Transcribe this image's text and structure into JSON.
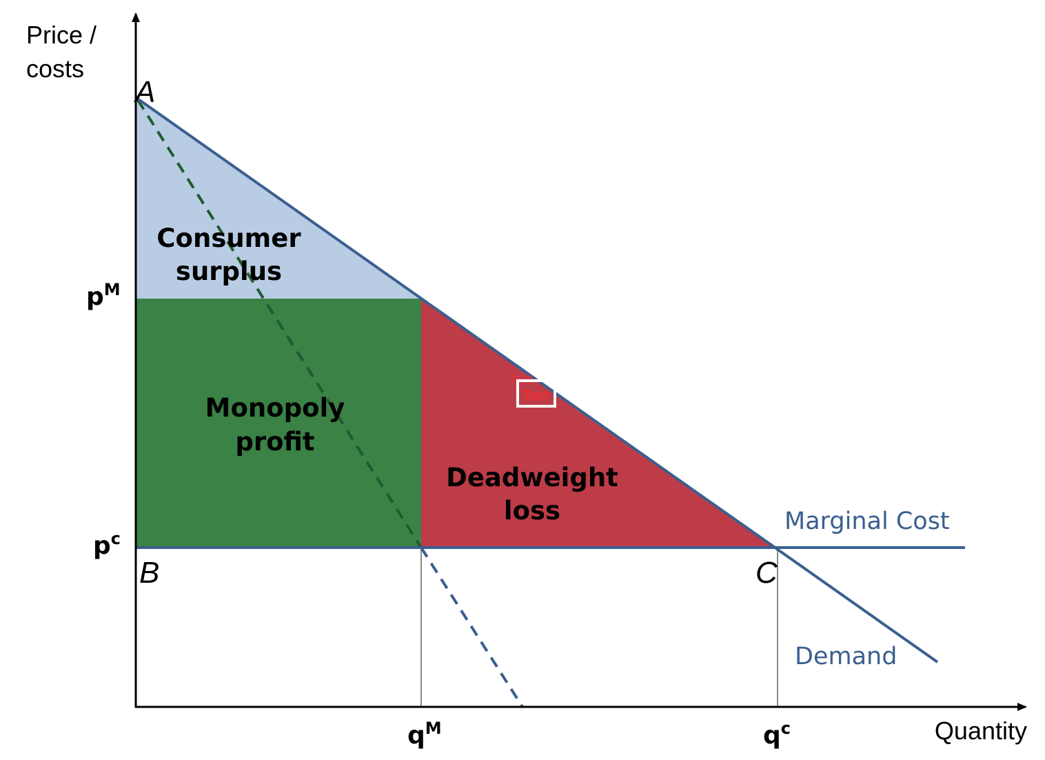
{
  "colors": {
    "consumer_surplus": "#b8cce4",
    "monopoly_profit": "#3a8246",
    "deadweight_loss": "#be3c47",
    "curve": "#3a5f8f",
    "dashed_green": "#1e5c30",
    "axis": "#000000",
    "guide": "#8a8a8a",
    "stray_text": "#ff2a2a"
  },
  "axes": {
    "y_title_line1": "Price /",
    "y_title_line2": "costs",
    "x_title": "Quantity"
  },
  "points": {
    "a": "A",
    "b": "B",
    "c": "C"
  },
  "regions": {
    "consumer_surplus": {
      "line1": "Consumer",
      "line2": "surplus"
    },
    "monopoly_profit": {
      "line1": "Monopoly",
      "line2": "profit"
    },
    "deadweight_loss": {
      "line1": "Deadweight",
      "line2": "loss"
    }
  },
  "curves": {
    "marginal_cost": "Marginal Cost",
    "demand": "Demand"
  },
  "ticks": {
    "p_monopoly": {
      "base": "p",
      "sup": "M"
    },
    "p_competitive": {
      "base": "p",
      "sup": "c"
    },
    "q_monopoly": {
      "base": "q",
      "sup": "M"
    },
    "q_competitive": {
      "base": "q",
      "sup": "c"
    }
  },
  "stray": {
    "text1": "Text",
    "text2": "Text"
  }
}
